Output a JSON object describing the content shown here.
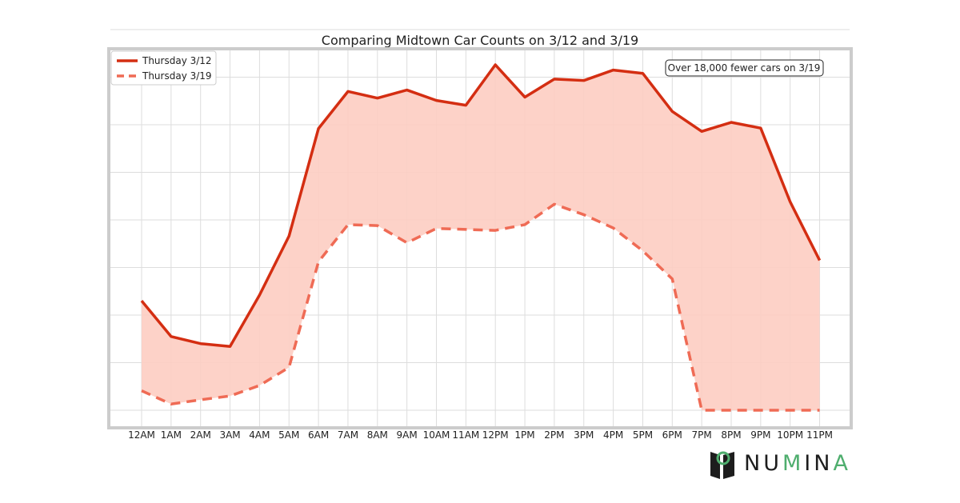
{
  "colors": {
    "series1": "#d42e12",
    "series2": "#ef6b55",
    "fill": "#fdcdc2",
    "frame": "#cccccc",
    "grid": "#dddddd",
    "brand_green": "#4fae6e",
    "brand_dark": "#1d1d1d"
  },
  "brand": {
    "name": "NUMINA",
    "icon": "numina-logo-icon"
  },
  "chart_data": {
    "type": "line",
    "title": "Comparing Midtown Car Counts on 3/12 and 3/19",
    "xlabel": "",
    "ylabel": "",
    "grid": true,
    "legend_position": "top-left",
    "annotation": "Over 18,000 fewer cars on 3/19",
    "y_tick_count": 8,
    "categories": [
      "12AM",
      "1AM",
      "2AM",
      "3AM",
      "4AM",
      "5AM",
      "6AM",
      "7AM",
      "8AM",
      "9AM",
      "10AM",
      "11AM",
      "12PM",
      "1PM",
      "2PM",
      "3PM",
      "4PM",
      "5PM",
      "6PM",
      "7PM",
      "8PM",
      "9PM",
      "10PM",
      "11PM"
    ],
    "series": [
      {
        "name": "Thursday 3/12",
        "style": "solid",
        "values": [
          2.3,
          1.55,
          1.4,
          1.34,
          2.42,
          3.66,
          5.92,
          6.7,
          6.56,
          6.73,
          6.51,
          6.41,
          7.26,
          6.58,
          6.96,
          6.93,
          7.15,
          7.08,
          6.28,
          5.86,
          6.05,
          5.93,
          4.38,
          3.15
        ]
      },
      {
        "name": "Thursday 3/19",
        "style": "dashed",
        "values": [
          0.41,
          0.13,
          0.22,
          0.3,
          0.52,
          0.9,
          3.12,
          3.9,
          3.88,
          3.52,
          3.82,
          3.8,
          3.78,
          3.9,
          4.33,
          4.11,
          3.83,
          3.35,
          2.76,
          0.0,
          0.0,
          0.0,
          0.0,
          0.0
        ]
      }
    ]
  }
}
